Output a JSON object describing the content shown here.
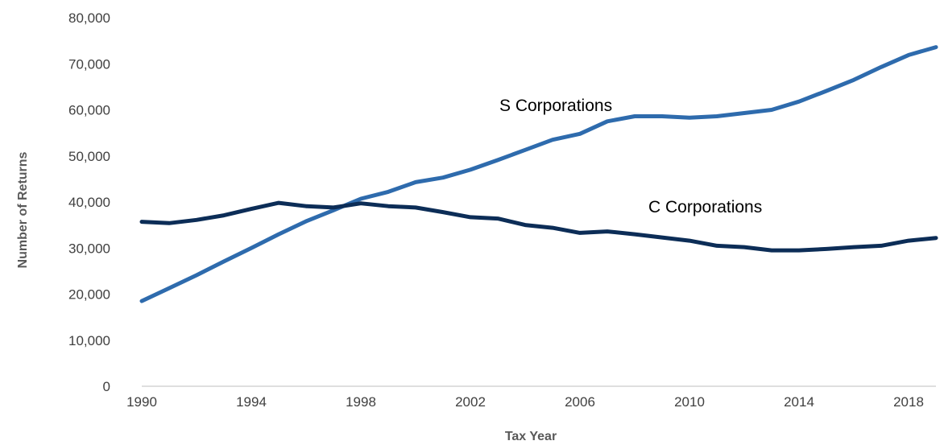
{
  "chart_data": {
    "type": "line",
    "xlabel": "Tax Year",
    "ylabel": "Number of Returns",
    "ylim": [
      0,
      80000
    ],
    "xlim": [
      1990,
      2019
    ],
    "grid": false,
    "y_ticks": [
      "0",
      "10,000",
      "20,000",
      "30,000",
      "40,000",
      "50,000",
      "60,000",
      "70,000",
      "80,000"
    ],
    "x_ticks": [
      "1990",
      "1994",
      "1998",
      "2002",
      "2006",
      "2010",
      "2014",
      "2018"
    ],
    "x": [
      1990,
      1991,
      1992,
      1993,
      1994,
      1995,
      1996,
      1997,
      1998,
      1999,
      2000,
      2001,
      2002,
      2003,
      2004,
      2005,
      2006,
      2007,
      2008,
      2009,
      2010,
      2011,
      2012,
      2013,
      2014,
      2015,
      2016,
      2017,
      2018,
      2019
    ],
    "series": [
      {
        "name": "S Corporations",
        "color": "#2e6bad",
        "values": [
          18500,
          21300,
          24100,
          27100,
          30000,
          33000,
          35800,
          38200,
          40700,
          42200,
          44300,
          45300,
          47000,
          49100,
          51300,
          53500,
          54800,
          57500,
          58600,
          58600,
          58300,
          58600,
          59300,
          60000,
          61800,
          64100,
          66500,
          69300,
          71900,
          73600
        ]
      },
      {
        "name": "C Corporations",
        "color": "#0c2d57",
        "values": [
          35700,
          35400,
          36100,
          37100,
          38500,
          39800,
          39100,
          38800,
          39700,
          39100,
          38800,
          37800,
          36700,
          36400,
          35000,
          34400,
          33300,
          33600,
          33000,
          32300,
          31600,
          30500,
          30200,
          29500,
          29500,
          29800,
          30200,
          30500,
          31600,
          32200
        ]
      }
    ],
    "annotations": {
      "s_label": "S Corporations",
      "c_label": "C Corporations"
    }
  }
}
